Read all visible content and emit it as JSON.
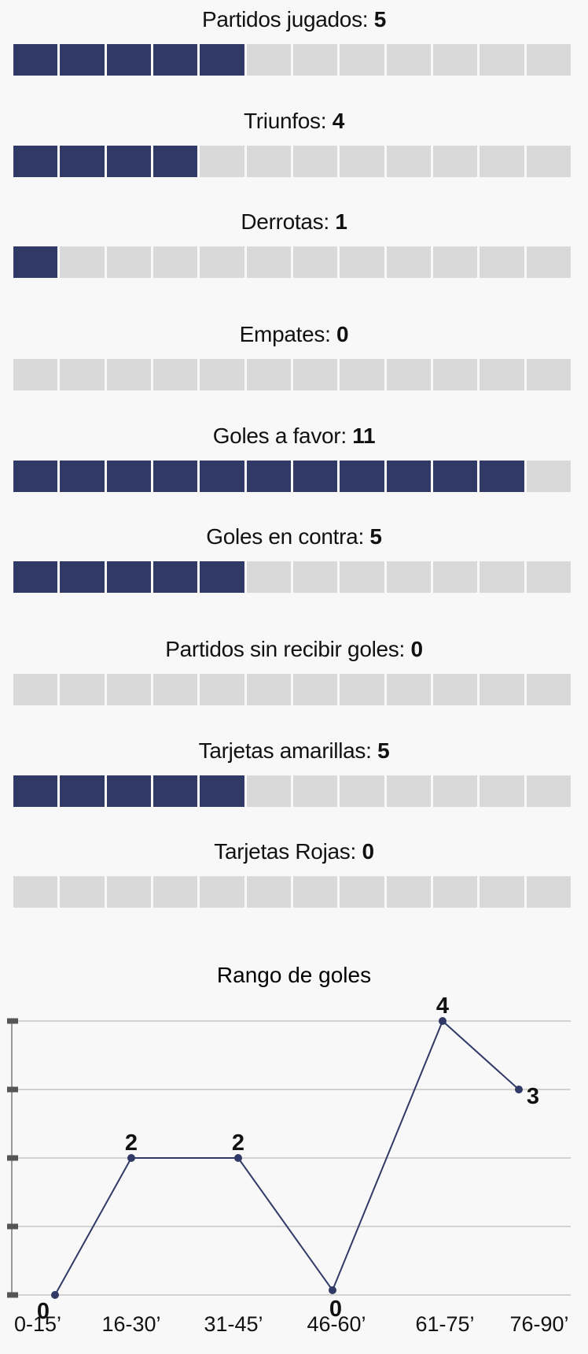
{
  "colors": {
    "filled": "#313966",
    "empty": "#d9d9d9",
    "line": "#313966",
    "grid": "#bbbbbb"
  },
  "stats": {
    "total_segments": 12,
    "items": [
      {
        "label": "Partidos jugados: ",
        "value": "5"
      },
      {
        "label": "Triunfos: ",
        "value": "4"
      },
      {
        "label": "Derrotas: ",
        "value": "1"
      },
      {
        "label": "Empates: ",
        "value": "0"
      },
      {
        "label": "Goles a favor: ",
        "value": "11"
      },
      {
        "label": "Goles en contra: ",
        "value": "5"
      },
      {
        "label": "Partidos sin recibir goles: ",
        "value": "0"
      },
      {
        "label": "Tarjetas amarillas: ",
        "value": "5"
      },
      {
        "label": "Tarjetas Rojas: ",
        "value": "0"
      }
    ]
  },
  "chart_data": {
    "type": "line",
    "title": "Rango de goles",
    "xlabel": "",
    "ylabel": "",
    "categories": [
      "0-15’",
      "16-30’",
      "31-45’",
      "46-60’",
      "61-75’",
      "76-90’"
    ],
    "values": [
      0,
      2,
      2,
      0,
      4,
      3
    ],
    "ylim": [
      0,
      4
    ],
    "grid": true
  }
}
